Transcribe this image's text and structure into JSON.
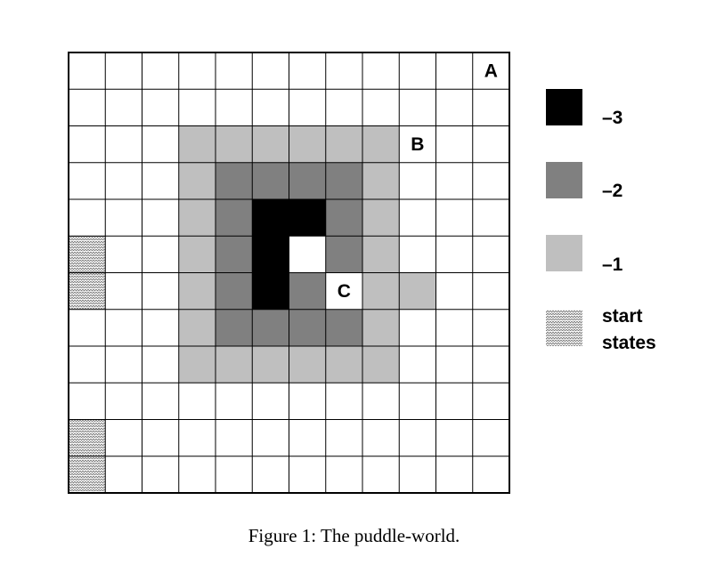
{
  "grid": {
    "cols": 12,
    "rows": 12
  },
  "puddle": {
    "level_1_cells": [
      [
        3,
        2
      ],
      [
        4,
        2
      ],
      [
        5,
        2
      ],
      [
        6,
        2
      ],
      [
        7,
        2
      ],
      [
        8,
        2
      ],
      [
        3,
        3
      ],
      [
        8,
        3
      ],
      [
        3,
        4
      ],
      [
        8,
        4
      ],
      [
        3,
        5
      ],
      [
        8,
        5
      ],
      [
        3,
        6
      ],
      [
        8,
        6
      ],
      [
        9,
        6
      ],
      [
        3,
        7
      ],
      [
        8,
        7
      ],
      [
        3,
        8
      ],
      [
        4,
        8
      ],
      [
        5,
        8
      ],
      [
        6,
        8
      ],
      [
        7,
        8
      ],
      [
        8,
        8
      ]
    ],
    "level_2_cells": [
      [
        4,
        3
      ],
      [
        5,
        3
      ],
      [
        6,
        3
      ],
      [
        7,
        3
      ],
      [
        4,
        4
      ],
      [
        7,
        4
      ],
      [
        4,
        5
      ],
      [
        7,
        5
      ],
      [
        4,
        6
      ],
      [
        6,
        6
      ],
      [
        4,
        7
      ],
      [
        5,
        7
      ],
      [
        6,
        7
      ],
      [
        7,
        7
      ]
    ],
    "level_3_cells": [
      [
        5,
        4
      ],
      [
        6,
        4
      ],
      [
        5,
        5
      ],
      [
        5,
        6
      ]
    ],
    "start_cells": [
      [
        0,
        5
      ],
      [
        0,
        6
      ],
      [
        0,
        10
      ],
      [
        0,
        11
      ]
    ]
  },
  "markers": {
    "A": {
      "text": "A",
      "col": 11,
      "row": 0
    },
    "B": {
      "text": "B",
      "col": 9,
      "row": 2
    },
    "C": {
      "text": "C",
      "col": 7,
      "row": 6
    }
  },
  "colors": {
    "level_3": "#000000",
    "level_2": "#808080",
    "level_1": "#bfbfbf",
    "grid_line": "#000000",
    "start_hatch": "#666666"
  },
  "legend": {
    "items": [
      {
        "key": "level_3",
        "label": "–3"
      },
      {
        "key": "level_2",
        "label": "–2"
      },
      {
        "key": "level_1",
        "label": "–1"
      },
      {
        "key": "start",
        "label_line1": "start",
        "label_line2": "states"
      }
    ]
  },
  "caption": "Figure 1:  The puddle-world."
}
